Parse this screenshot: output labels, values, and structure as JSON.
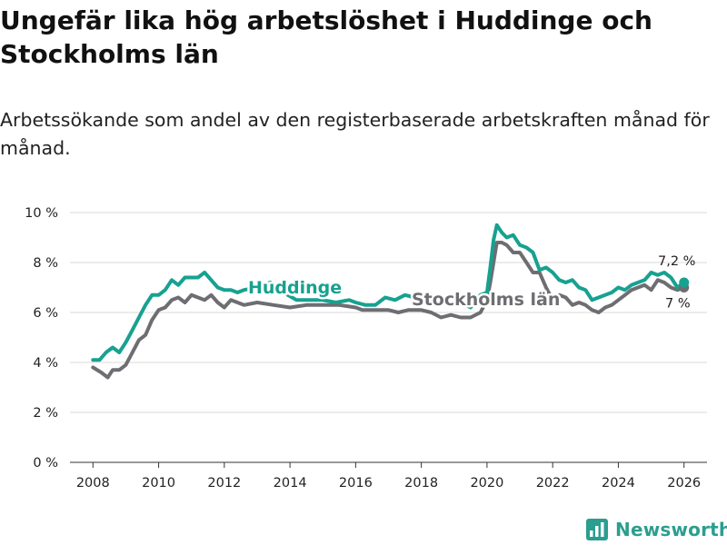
{
  "header": {
    "title": "Ungefär lika hög arbetslöshet i Huddinge och Stockholms län",
    "subtitle": "Arbetssökande som andel av den registerbaserade arbetskraften månad för månad."
  },
  "brand": {
    "name": "Newsworthy",
    "color": "#2b9e8f"
  },
  "chart_data": {
    "type": "line",
    "title": "Ungefär lika hög arbetslöshet i Huddinge och Stockholms län",
    "xlabel": "",
    "ylabel": "",
    "xlim": [
      2007.3,
      2026.7
    ],
    "ylim": [
      0,
      10
    ],
    "grid": "horizontal",
    "y_ticks": [
      0,
      2,
      4,
      6,
      8,
      10
    ],
    "y_tick_labels": [
      "0 %",
      "2 %",
      "4 %",
      "6 %",
      "8 %",
      "10 %"
    ],
    "x_ticks": [
      2008,
      2010,
      2012,
      2014,
      2016,
      2018,
      2020,
      2022,
      2024,
      2026
    ],
    "x_tick_labels": [
      "2008",
      "2010",
      "2012",
      "2014",
      "2016",
      "2018",
      "2020",
      "2022",
      "2024",
      "2026"
    ],
    "series": [
      {
        "name": "Stockholms län",
        "color": "#6e6d72",
        "end_label": "7 %",
        "x": [
          2008.0,
          2008.25,
          2008.45,
          2008.6,
          2008.8,
          2009.0,
          2009.2,
          2009.4,
          2009.6,
          2009.8,
          2010.0,
          2010.2,
          2010.4,
          2010.6,
          2010.8,
          2011.0,
          2011.2,
          2011.4,
          2011.6,
          2011.8,
          2012.0,
          2012.2,
          2012.4,
          2012.6,
          2013.0,
          2013.5,
          2014.0,
          2014.5,
          2015.0,
          2015.5,
          2016.0,
          2016.2,
          2016.5,
          2016.8,
          2017.0,
          2017.3,
          2017.6,
          2017.9,
          2018.0,
          2018.3,
          2018.6,
          2018.9,
          2019.2,
          2019.5,
          2019.8,
          2020.0,
          2020.1,
          2020.2,
          2020.3,
          2020.45,
          2020.6,
          2020.8,
          2021.0,
          2021.2,
          2021.4,
          2021.6,
          2021.8,
          2022.0,
          2022.2,
          2022.4,
          2022.6,
          2022.8,
          2023.0,
          2023.2,
          2023.4,
          2023.6,
          2023.8,
          2024.0,
          2024.2,
          2024.4,
          2024.6,
          2024.8,
          2025.0,
          2025.2,
          2025.4,
          2025.6,
          2025.8,
          2026.0
        ],
        "y": [
          3.8,
          3.6,
          3.4,
          3.7,
          3.7,
          3.9,
          4.4,
          4.9,
          5.1,
          5.7,
          6.1,
          6.2,
          6.5,
          6.6,
          6.4,
          6.7,
          6.6,
          6.5,
          6.7,
          6.4,
          6.2,
          6.5,
          6.4,
          6.3,
          6.4,
          6.3,
          6.2,
          6.3,
          6.3,
          6.3,
          6.2,
          6.1,
          6.1,
          6.1,
          6.1,
          6.0,
          6.1,
          6.1,
          6.1,
          6.0,
          5.8,
          5.9,
          5.8,
          5.8,
          6.0,
          6.5,
          7.2,
          8.0,
          8.8,
          8.8,
          8.7,
          8.4,
          8.4,
          8.0,
          7.6,
          7.6,
          7.0,
          6.5,
          6.7,
          6.6,
          6.3,
          6.4,
          6.3,
          6.1,
          6.0,
          6.2,
          6.3,
          6.5,
          6.7,
          6.9,
          7.0,
          7.1,
          6.9,
          7.3,
          7.2,
          7.0,
          6.9,
          7.0
        ]
      },
      {
        "name": "Huddinge",
        "color": "#17a190",
        "end_label": "7,2 %",
        "x": [
          2008.0,
          2008.2,
          2008.4,
          2008.6,
          2008.8,
          2009.0,
          2009.2,
          2009.4,
          2009.6,
          2009.8,
          2010.0,
          2010.2,
          2010.4,
          2010.6,
          2010.8,
          2011.0,
          2011.2,
          2011.4,
          2011.6,
          2011.8,
          2012.0,
          2012.2,
          2012.4,
          2012.6,
          2013.0,
          2013.4,
          2013.8,
          2014.2,
          2014.6,
          2015.0,
          2015.4,
          2015.8,
          2016.0,
          2016.3,
          2016.6,
          2016.9,
          2017.2,
          2017.5,
          2017.8,
          2018.0,
          2018.3,
          2018.6,
          2018.9,
          2019.2,
          2019.5,
          2019.8,
          2020.0,
          2020.1,
          2020.2,
          2020.3,
          2020.45,
          2020.6,
          2020.8,
          2021.0,
          2021.2,
          2021.4,
          2021.6,
          2021.8,
          2022.0,
          2022.2,
          2022.4,
          2022.6,
          2022.8,
          2023.0,
          2023.2,
          2023.4,
          2023.6,
          2023.8,
          2024.0,
          2024.2,
          2024.4,
          2024.6,
          2024.8,
          2025.0,
          2025.2,
          2025.4,
          2025.6,
          2025.8,
          2026.0
        ],
        "y": [
          4.1,
          4.1,
          4.4,
          4.6,
          4.4,
          4.8,
          5.3,
          5.8,
          6.3,
          6.7,
          6.7,
          6.9,
          7.3,
          7.1,
          7.4,
          7.4,
          7.4,
          7.6,
          7.3,
          7.0,
          6.9,
          6.9,
          6.8,
          6.9,
          7.0,
          7.2,
          6.8,
          6.5,
          6.5,
          6.5,
          6.4,
          6.5,
          6.4,
          6.3,
          6.3,
          6.6,
          6.5,
          6.7,
          6.6,
          6.6,
          6.7,
          6.5,
          6.6,
          6.4,
          6.2,
          6.7,
          6.8,
          7.8,
          8.9,
          9.5,
          9.2,
          9.0,
          9.1,
          8.7,
          8.6,
          8.4,
          7.7,
          7.8,
          7.6,
          7.3,
          7.2,
          7.3,
          7.0,
          6.9,
          6.5,
          6.6,
          6.7,
          6.8,
          7.0,
          6.9,
          7.1,
          7.2,
          7.3,
          7.6,
          7.5,
          7.6,
          7.4,
          7.0,
          7.2
        ]
      }
    ]
  }
}
